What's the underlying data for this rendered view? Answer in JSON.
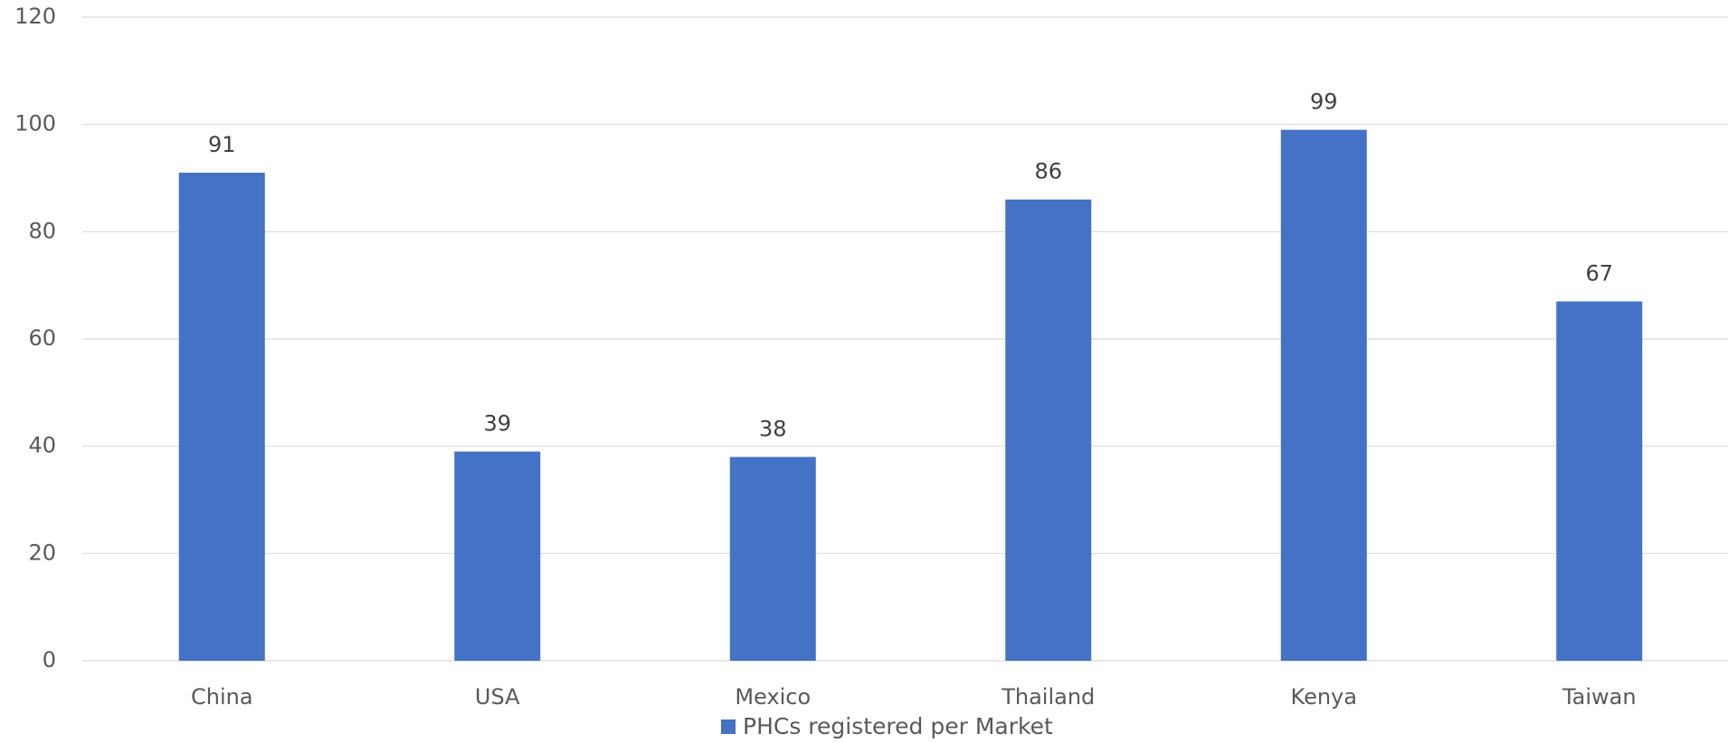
{
  "chart_data": {
    "type": "bar",
    "categories": [
      "China",
      "USA",
      "Mexico",
      "Thailand",
      "Kenya",
      "Taiwan"
    ],
    "series": [
      {
        "name": "PHCs registered per Market",
        "color": "#4472c4",
        "values": [
          91,
          39,
          38,
          86,
          99,
          67
        ]
      }
    ],
    "ylim": [
      0,
      120
    ],
    "yticks": [
      0,
      20,
      40,
      60,
      80,
      100,
      120
    ],
    "grid": true,
    "legend": "bottom"
  }
}
